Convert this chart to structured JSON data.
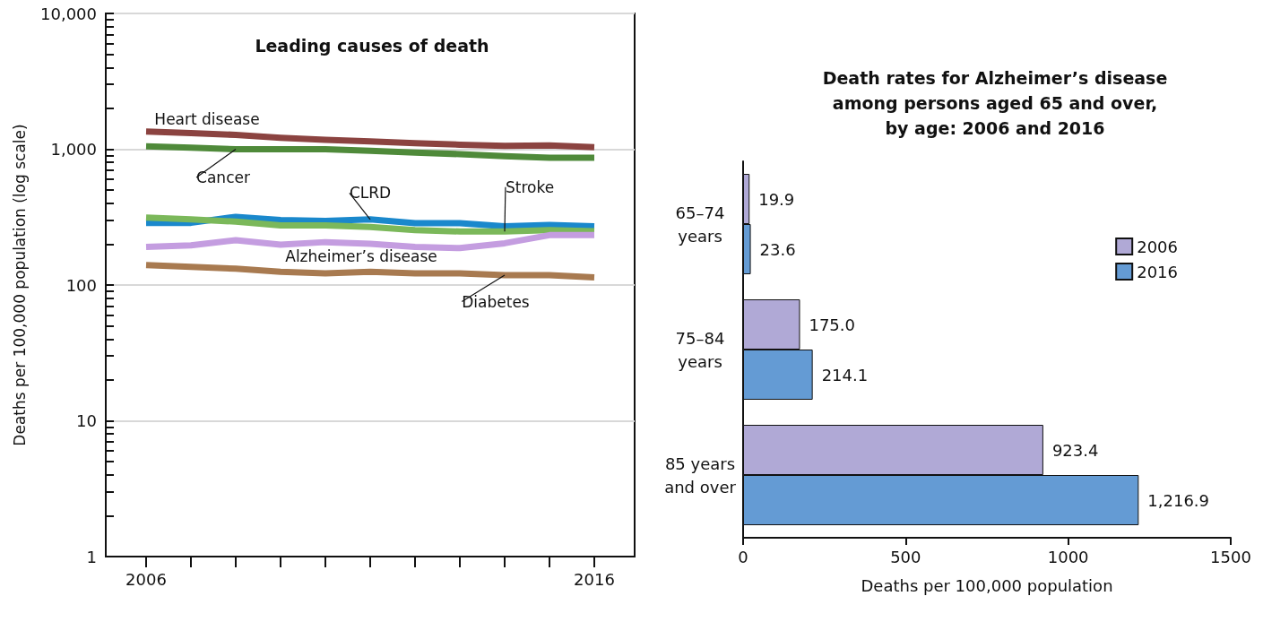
{
  "chart_data": [
    {
      "type": "line",
      "title": "Leading causes of death",
      "ylabel": "Deaths per 100,000 population (log scale)",
      "log": true,
      "grid": "y",
      "legend": false,
      "marker": "none",
      "line_style": "solid",
      "x": [
        2006,
        2007,
        2008,
        2009,
        2010,
        2011,
        2012,
        2013,
        2014,
        2015,
        2016
      ],
      "xlim": [
        2005.1,
        2016.9
      ],
      "xticks": [
        2006,
        {
          "value": 2007,
          "label": null
        },
        {
          "value": 2008,
          "label": null
        },
        {
          "value": 2009,
          "label": null
        },
        {
          "value": 2010,
          "label": null
        },
        {
          "value": 2011,
          "label": null
        },
        {
          "value": 2012,
          "label": null
        },
        {
          "value": 2013,
          "label": null
        },
        {
          "value": 2014,
          "label": null
        },
        {
          "value": 2015,
          "label": null
        },
        2016
      ],
      "ylim": [
        1,
        10000
      ],
      "yticks": [
        1,
        {
          "value": 2,
          "label": null
        },
        {
          "value": 3,
          "label": null
        },
        {
          "value": 4,
          "label": null
        },
        {
          "value": 5,
          "label": null
        },
        {
          "value": 6,
          "label": null
        },
        {
          "value": 7,
          "label": null
        },
        {
          "value": 8,
          "label": null
        },
        {
          "value": 9,
          "label": null
        },
        10,
        {
          "value": 20,
          "label": null
        },
        {
          "value": 30,
          "label": null
        },
        {
          "value": 40,
          "label": null
        },
        {
          "value": 50,
          "label": null
        },
        {
          "value": 60,
          "label": null
        },
        {
          "value": 70,
          "label": null
        },
        {
          "value": 80,
          "label": null
        },
        {
          "value": 90,
          "label": null
        },
        100,
        {
          "value": 200,
          "label": null
        },
        {
          "value": 300,
          "label": null
        },
        {
          "value": 400,
          "label": null
        },
        {
          "value": 500,
          "label": null
        },
        {
          "value": 600,
          "label": null
        },
        {
          "value": 700,
          "label": null
        },
        {
          "value": 800,
          "label": null
        },
        {
          "value": 900,
          "label": null
        },
        {
          "value": 1000,
          "label": "1,000"
        },
        {
          "value": 2000,
          "label": null
        },
        {
          "value": 3000,
          "label": null
        },
        {
          "value": 4000,
          "label": null
        },
        {
          "value": 5000,
          "label": null
        },
        {
          "value": 6000,
          "label": null
        },
        {
          "value": 7000,
          "label": null
        },
        {
          "value": 8000,
          "label": null
        },
        {
          "value": 9000,
          "label": null
        },
        {
          "value": 10000,
          "label": "10,000"
        }
      ],
      "series": [
        {
          "name": "Heart disease",
          "color": "#8b4340",
          "values": [
            1349,
            1313,
            1276,
            1216,
            1174,
            1142,
            1110,
            1080,
            1057,
            1065,
            1035
          ]
        },
        {
          "name": "Cancer",
          "color": "#4f8a3a",
          "values": [
            1050,
            1028,
            1000,
            1000,
            1000,
            972,
            946,
            920,
            888,
            864,
            864
          ]
        },
        {
          "name": "CLRD",
          "color": "#1a88cc",
          "values": [
            287,
            287,
            318,
            301,
            297,
            304,
            285,
            285,
            271,
            277,
            271
          ]
        },
        {
          "name": "Stroke",
          "color": "#7bb85a",
          "values": [
            314,
            304,
            293,
            275,
            275,
            268,
            254,
            248,
            248,
            254,
            249
          ]
        },
        {
          "name": "Alzheimer’s disease",
          "color": "#c49de0",
          "values": [
            191,
            196,
            214,
            198,
            207,
            201,
            191,
            187,
            203,
            233,
            233
          ]
        },
        {
          "name": "Diabetes",
          "color": "#a87a50",
          "values": [
            140,
            136,
            132,
            125,
            122,
            125,
            122,
            122,
            118,
            118,
            114
          ]
        }
      ]
    },
    {
      "type": "bar",
      "orientation": "horizontal",
      "title": "Death rates for Alzheimer’s disease\namong persons aged 65 and over,\nby age: 2006 and 2016",
      "xlabel": "Deaths per 100,000 population",
      "legend": "right",
      "grid": false,
      "categories": [
        "65–74\nyears",
        "75–84\nyears",
        "85 years\nand over"
      ],
      "xlim": [
        0,
        1500
      ],
      "xticks": [
        0,
        500,
        1000,
        1500
      ],
      "series": [
        {
          "name": "2006",
          "color": "#b0a9d6",
          "values": [
            19.9,
            175.0,
            923.4
          ],
          "value_labels": [
            "19.9",
            "175.0",
            "923.4"
          ]
        },
        {
          "name": "2016",
          "color": "#649bd4",
          "values": [
            23.6,
            214.1,
            1216.9
          ],
          "value_labels": [
            "23.6",
            "214.1",
            "1,216.9"
          ]
        }
      ]
    }
  ]
}
